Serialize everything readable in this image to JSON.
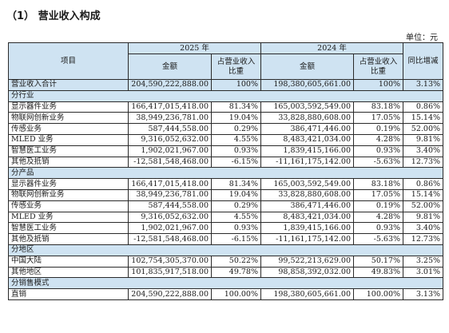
{
  "title": "（1） 营业收入构成",
  "unit_label": "单位：元",
  "header": {
    "item": "项目",
    "year_2025": "2025 年",
    "year_2024": "2024 年",
    "amount": "金额",
    "ratio": "占营业收入比重",
    "yoy": "同比增减"
  },
  "total": {
    "label": "营业收入合计",
    "a25": "204,590,222,888.00",
    "r25": "100%",
    "a24": "198,380,605,661.00",
    "r24": "100%",
    "yoy": "3.13%"
  },
  "sections": [
    {
      "name": "分行业",
      "rows": [
        {
          "label": "显示器件业务",
          "a25": "166,417,015,418.00",
          "r25": "81.34%",
          "a24": "165,003,592,549.00",
          "r24": "83.18%",
          "yoy": "0.86%"
        },
        {
          "label": "物联网创新业务",
          "a25": "38,949,236,781.00",
          "r25": "19.04%",
          "a24": "33,828,880,608.00",
          "r24": "17.05%",
          "yoy": "15.14%"
        },
        {
          "label": "传感业务",
          "a25": "587,444,558.00",
          "r25": "0.29%",
          "a24": "386,471,446.00",
          "r24": "0.19%",
          "yoy": "52.00%"
        },
        {
          "label": "MLED 业务",
          "a25": "9,316,052,632.00",
          "r25": "4.55%",
          "a24": "8,483,421,034.00",
          "r24": "4.28%",
          "yoy": "9.81%"
        },
        {
          "label": "智慧医工业务",
          "a25": "1,902,021,967.00",
          "r25": "0.93%",
          "a24": "1,839,415,166.00",
          "r24": "0.93%",
          "yoy": "3.40%"
        },
        {
          "label": "其他及抵销",
          "a25": "-12,581,548,468.00",
          "r25": "-6.15%",
          "a24": "-11,161,175,142.00",
          "r24": "-5.63%",
          "yoy": "12.73%"
        }
      ]
    },
    {
      "name": "分产品",
      "rows": [
        {
          "label": "显示器件业务",
          "a25": "166,417,015,418.00",
          "r25": "81.34%",
          "a24": "165,003,592,549.00",
          "r24": "83.18%",
          "yoy": "0.86%"
        },
        {
          "label": "物联网创新业务",
          "a25": "38,949,236,781.00",
          "r25": "19.04%",
          "a24": "33,828,880,608.00",
          "r24": "17.05%",
          "yoy": "15.14%"
        },
        {
          "label": "传感业务",
          "a25": "587,444,558.00",
          "r25": "0.29%",
          "a24": "386,471,446.00",
          "r24": "0.19%",
          "yoy": "52.00%"
        },
        {
          "label": "MLED 业务",
          "a25": "9,316,052,632.00",
          "r25": "4.55%",
          "a24": "8,483,421,034.00",
          "r24": "4.28%",
          "yoy": "9.81%"
        },
        {
          "label": "智慧医工业务",
          "a25": "1,902,021,967.00",
          "r25": "0.93%",
          "a24": "1,839,415,166.00",
          "r24": "0.93%",
          "yoy": "3.40%"
        },
        {
          "label": "其他及抵销",
          "a25": "-12,581,548,468.00",
          "r25": "-6.15%",
          "a24": "-11,161,175,142.00",
          "r24": "-5.63%",
          "yoy": "12.73%"
        }
      ]
    },
    {
      "name": "分地区",
      "rows": [
        {
          "label": "中国大陆",
          "a25": "102,754,305,370.00",
          "r25": "50.22%",
          "a24": "99,522,213,629.00",
          "r24": "50.17%",
          "yoy": "3.25%"
        },
        {
          "label": "其他地区",
          "a25": "101,835,917,518.00",
          "r25": "49.78%",
          "a24": "98,858,392,032.00",
          "r24": "49.83%",
          "yoy": "3.01%"
        }
      ]
    },
    {
      "name": "分销售模式",
      "rows": [
        {
          "label": "直销",
          "a25": "204,590,222,888.00",
          "r25": "100.00%",
          "a24": "198,380,605,661.00",
          "r24": "100.00%",
          "yoy": "3.13%"
        }
      ]
    }
  ],
  "colors": {
    "header_bg": "#cfe3f2",
    "border": "#2a2a2a"
  }
}
